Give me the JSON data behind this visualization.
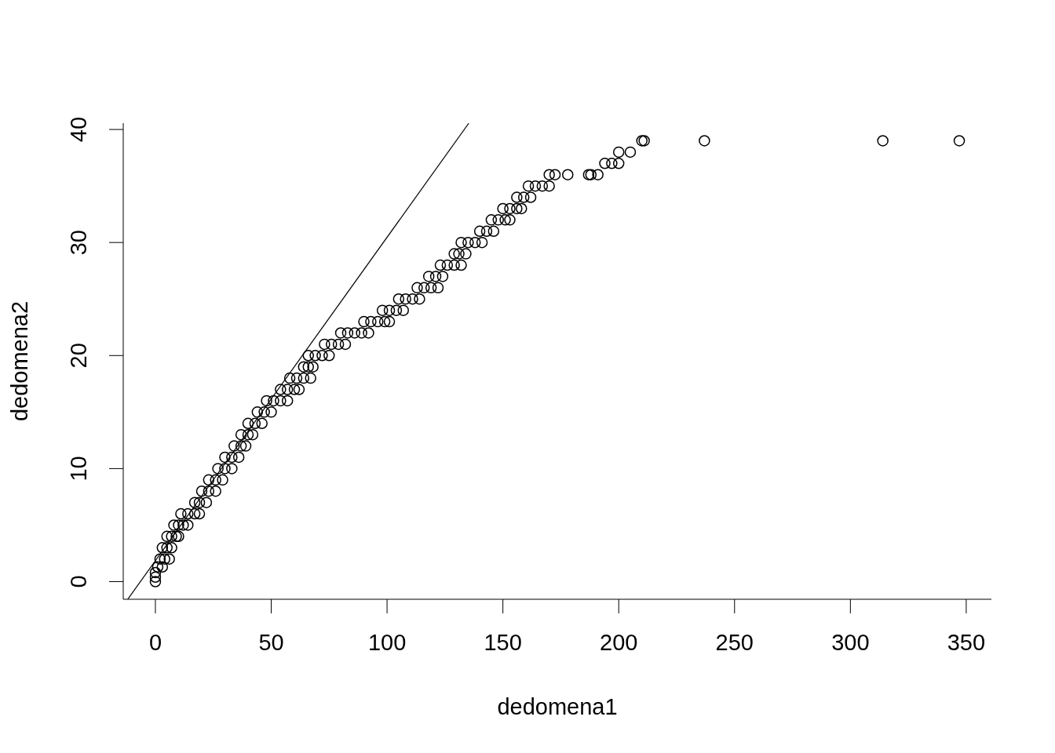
{
  "chart_data": {
    "type": "scatter",
    "xlabel": "dedomena1",
    "ylabel": "dedomena2",
    "xlim": [
      -13.88,
      360.88
    ],
    "ylim": [
      -1.56,
      40.56
    ],
    "xticks": [
      0,
      50,
      100,
      150,
      200,
      250,
      300,
      350
    ],
    "yticks": [
      0,
      10,
      20,
      30,
      40
    ],
    "series": [
      {
        "color": "#000000",
        "marker": "circle",
        "x": [
          0,
          0,
          0,
          1,
          3,
          2,
          4,
          6,
          3,
          5,
          7,
          5,
          7,
          9,
          10,
          8,
          10,
          12,
          14,
          11,
          14,
          17,
          19,
          17,
          19,
          22,
          20,
          23,
          26,
          23,
          26,
          29,
          27,
          30,
          33,
          30,
          33,
          36,
          34,
          37,
          39,
          37,
          40,
          42,
          40,
          43,
          46,
          44,
          47,
          50,
          48,
          51,
          54,
          57,
          54,
          57,
          60,
          62,
          58,
          61,
          64,
          67,
          64,
          66,
          68,
          66,
          69,
          72,
          75,
          73,
          76,
          79,
          82,
          80,
          83,
          86,
          89,
          92,
          90,
          93,
          96,
          99,
          101,
          98,
          101,
          104,
          107,
          105,
          108,
          111,
          114,
          113,
          116,
          119,
          122,
          118,
          121,
          124,
          123,
          126,
          129,
          132,
          129,
          131,
          134,
          132,
          135,
          138,
          141,
          140,
          143,
          146,
          145,
          148,
          151,
          153,
          150,
          153,
          156,
          158,
          156,
          159,
          162,
          161,
          164,
          167,
          170,
          170,
          172.5,
          178,
          187,
          188,
          191,
          194,
          197,
          200,
          200,
          205,
          210,
          211,
          237,
          314,
          347
        ],
        "values": [
          0,
          0.4,
          0.8,
          1.3,
          1.3,
          2,
          2,
          2,
          3,
          3,
          3,
          4,
          4,
          4,
          4,
          5,
          5,
          5,
          5,
          6,
          6,
          6,
          6,
          7,
          7,
          7,
          8,
          8,
          8,
          9,
          9,
          9,
          10,
          10,
          10,
          11,
          11,
          11,
          12,
          12,
          12,
          13,
          13,
          13,
          14,
          14,
          14,
          15,
          15,
          15,
          16,
          16,
          16,
          16,
          17,
          17,
          17,
          17,
          18,
          18,
          18,
          18,
          19,
          19,
          19,
          20,
          20,
          20,
          20,
          21,
          21,
          21,
          21,
          22,
          22,
          22,
          22,
          22,
          23,
          23,
          23,
          23,
          23,
          24,
          24,
          24,
          24,
          25,
          25,
          25,
          25,
          26,
          26,
          26,
          26,
          27,
          27,
          27,
          28,
          28,
          28,
          28,
          29,
          29,
          29,
          30,
          30,
          30,
          30,
          31,
          31,
          31,
          32,
          32,
          32,
          32,
          33,
          33,
          33,
          33,
          34,
          34,
          34,
          35,
          35,
          35,
          35,
          36,
          36,
          36,
          36,
          36,
          36,
          37,
          37,
          37,
          38,
          38,
          39,
          39,
          39,
          39,
          39
        ]
      },
      {
        "type": "line",
        "color": "#000000",
        "x": [
          -11.9,
          135.3
        ],
        "values": [
          -1.55,
          40.56
        ]
      }
    ]
  }
}
